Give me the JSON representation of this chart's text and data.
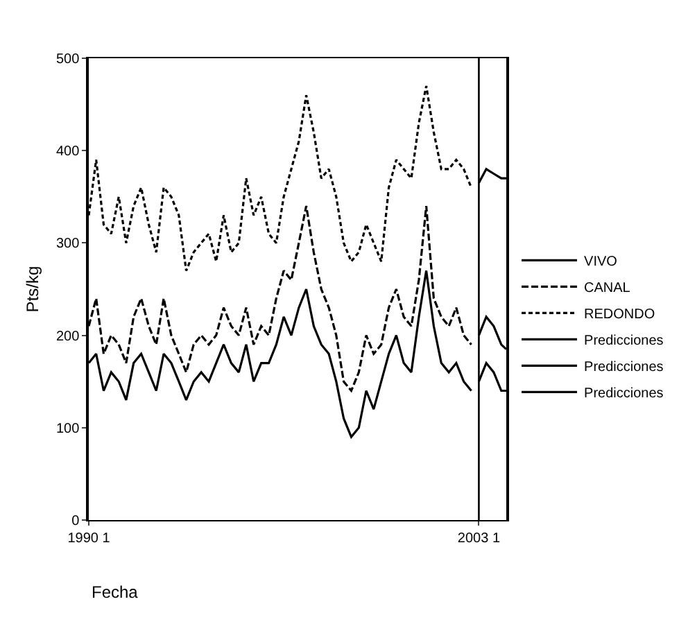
{
  "chart_data": {
    "type": "line",
    "xlabel": "Fecha",
    "ylabel": "Pts/kg",
    "x": [
      "1990-01",
      "1990-04",
      "1990-07",
      "1990-10",
      "1991-01",
      "1991-04",
      "1991-07",
      "1991-10",
      "1992-01",
      "1992-04",
      "1992-07",
      "1992-10",
      "1993-01",
      "1993-04",
      "1993-07",
      "1993-10",
      "1994-01",
      "1994-04",
      "1994-07",
      "1994-10",
      "1995-01",
      "1995-04",
      "1995-07",
      "1995-10",
      "1996-01",
      "1996-04",
      "1996-07",
      "1996-10",
      "1997-01",
      "1997-04",
      "1997-07",
      "1997-10",
      "1998-01",
      "1998-04",
      "1998-07",
      "1998-10",
      "1999-01",
      "1999-04",
      "1999-07",
      "1999-10",
      "2000-01",
      "2000-04",
      "2000-07",
      "2000-10",
      "2001-01",
      "2001-04",
      "2001-07",
      "2001-10",
      "2002-01",
      "2002-04",
      "2002-07",
      "2002-10"
    ],
    "series": [
      {
        "name": "VIVO",
        "color": "#000000",
        "line_style": "solid",
        "values": [
          170,
          180,
          140,
          160,
          150,
          130,
          170,
          180,
          160,
          140,
          180,
          170,
          150,
          130,
          150,
          160,
          150,
          170,
          190,
          170,
          160,
          190,
          150,
          170,
          170,
          190,
          220,
          200,
          230,
          250,
          210,
          190,
          180,
          150,
          110,
          90,
          100,
          140,
          120,
          150,
          180,
          200,
          170,
          160,
          220,
          270,
          210,
          170,
          160,
          170,
          150,
          140
        ]
      },
      {
        "name": "CANAL",
        "color": "#000000",
        "line_style": "dashed",
        "values": [
          210,
          240,
          180,
          200,
          190,
          170,
          220,
          240,
          210,
          190,
          240,
          200,
          180,
          160,
          190,
          200,
          190,
          200,
          230,
          210,
          200,
          230,
          190,
          210,
          200,
          240,
          270,
          260,
          300,
          340,
          290,
          250,
          230,
          200,
          150,
          140,
          160,
          200,
          180,
          190,
          230,
          250,
          220,
          210,
          260,
          340,
          240,
          220,
          210,
          230,
          200,
          190
        ]
      },
      {
        "name": "REDONDO",
        "color": "#000000",
        "line_style": "dotted",
        "values": [
          330,
          390,
          320,
          310,
          350,
          300,
          340,
          360,
          320,
          290,
          360,
          350,
          330,
          270,
          290,
          300,
          310,
          280,
          330,
          290,
          300,
          370,
          330,
          350,
          310,
          300,
          350,
          380,
          410,
          460,
          420,
          370,
          380,
          350,
          300,
          280,
          290,
          320,
          300,
          280,
          360,
          390,
          380,
          370,
          430,
          470,
          420,
          380,
          380,
          390,
          380,
          360
        ]
      },
      {
        "name": "Predicciones",
        "color": "#000000",
        "line_style": "solid",
        "x": [
          "2003-01",
          "2003-04",
          "2003-07",
          "2003-10",
          "2003-12"
        ],
        "values": [
          150,
          170,
          160,
          140,
          140
        ]
      },
      {
        "name": "Predicciones",
        "color": "#000000",
        "line_style": "solid",
        "x": [
          "2003-01",
          "2003-04",
          "2003-07",
          "2003-10",
          "2003-12"
        ],
        "values": [
          200,
          220,
          210,
          190,
          185
        ]
      },
      {
        "name": "Predicciones",
        "color": "#000000",
        "line_style": "solid",
        "x": [
          "2003-01",
          "2003-04",
          "2003-07",
          "2003-10",
          "2003-12"
        ],
        "values": [
          365,
          380,
          375,
          370,
          370
        ]
      }
    ],
    "xlim": [
      "1990-01",
      "2003-12"
    ],
    "xticks": [
      {
        "value": "1990-01",
        "label": "1990 1"
      },
      {
        "value": "2003-01",
        "label": "2003 1"
      }
    ],
    "ylim": [
      0,
      500
    ],
    "yticks": [
      0,
      100,
      200,
      300,
      400,
      500
    ],
    "ref_lines": [
      {
        "axis": "x",
        "value": "2003-01",
        "label": null,
        "color": "#000000"
      }
    ],
    "grid": false,
    "legend": "right",
    "marker": "none"
  }
}
